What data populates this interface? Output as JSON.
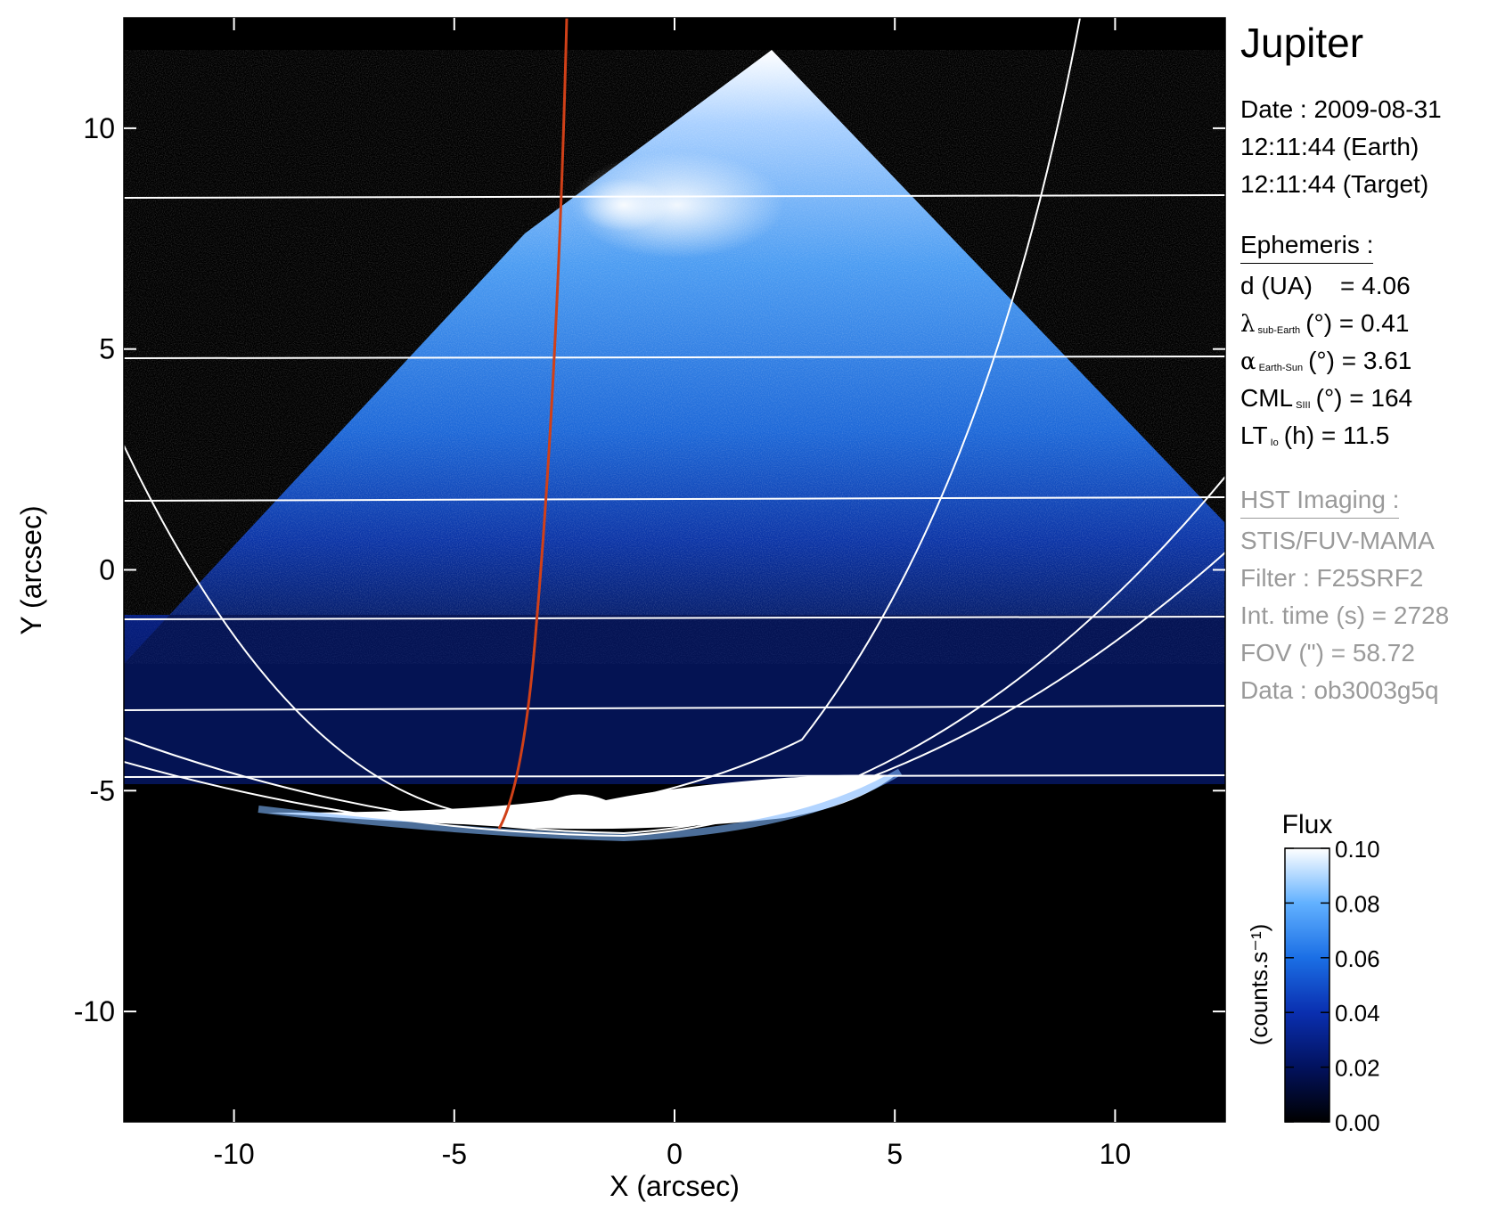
{
  "title": "Jupiter",
  "observation": {
    "date_line": "Date : 2009-08-31",
    "earth_time": "12:11:44 (Earth)",
    "target_time": "12:11:44 (Target)"
  },
  "ephemeris": {
    "header": "Ephemeris :",
    "distance": {
      "label": "d (UA)",
      "value": "= 4.06"
    },
    "sub_earth_lat": {
      "symbol": "λ",
      "sub": "sub-Earth",
      "unit": "(°)",
      "value": "= 0.41"
    },
    "phase_angle": {
      "symbol": "α",
      "sub": "Earth-Sun",
      "unit": "(°)",
      "value": "= 3.61"
    },
    "cml": {
      "symbol": "CML",
      "sub": "SIII",
      "unit": "(°)",
      "value": "= 164"
    },
    "lt_io": {
      "symbol": "LT",
      "sub": "Io",
      "unit": "(h)",
      "value": "= 11.5"
    }
  },
  "hst": {
    "header": "HST Imaging :",
    "instrument": "STIS/FUV-MAMA",
    "filter": "Filter : F25SRF2",
    "int_time": "Int. time (s) = 2728",
    "fov": "FOV (\") = 58.72",
    "data": "Data : ob3003g5q"
  },
  "chart_data": {
    "type": "heatmap",
    "xlabel": "X (arcsec)",
    "ylabel": "Y (arcsec)",
    "xlim": [
      -12.5,
      12.5
    ],
    "ylim": [
      -12.5,
      12.5
    ],
    "xticks": [
      -10,
      -5,
      0,
      5,
      10
    ],
    "yticks": [
      -10,
      -5,
      0,
      5,
      10
    ],
    "tick_labels": {
      "x": [
        "-10",
        "-5",
        "0",
        "5",
        "10"
      ],
      "y": [
        "-10",
        "-5",
        "0",
        "5",
        "10"
      ]
    },
    "colorbar": {
      "title": "Flux",
      "label": "(counts.s⁻¹)",
      "range": [
        0.0,
        0.1
      ],
      "ticks": [
        "0.10",
        "0.08",
        "0.06",
        "0.04",
        "0.02",
        "0.00"
      ]
    },
    "colors": {
      "background": "#000000",
      "grid": "#ffffff",
      "io_footprint": "#d04018",
      "disk_blue": "#1a6ee0"
    }
  }
}
